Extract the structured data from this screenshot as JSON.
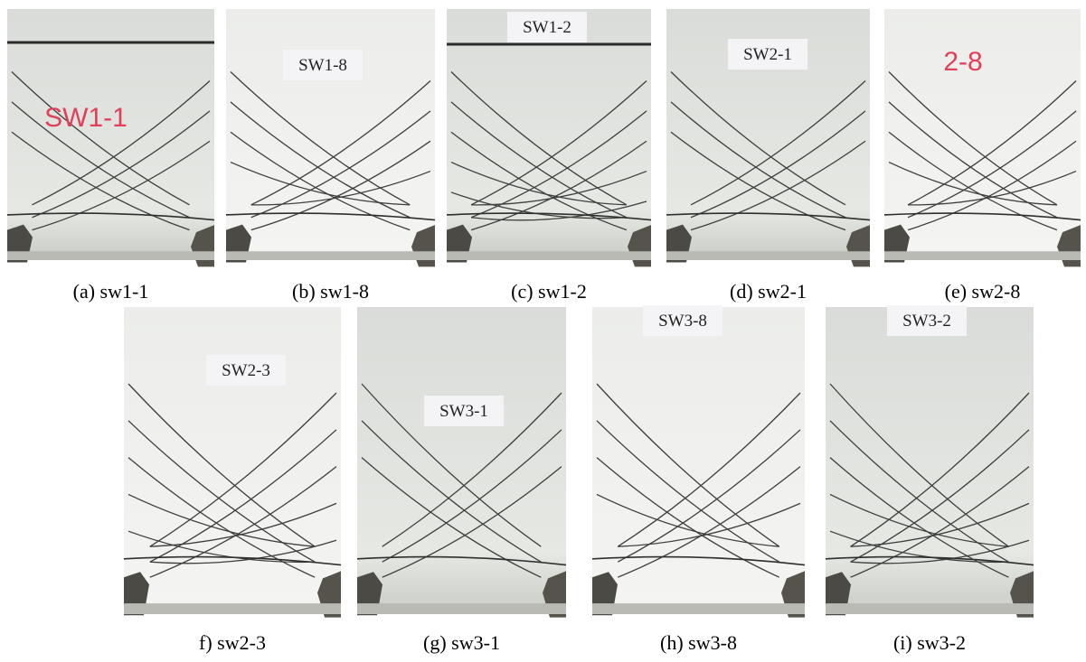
{
  "panels": [
    {
      "label": "SW1-1",
      "caption": "(a) sw1-1"
    },
    {
      "label": "SW1-8",
      "caption": "(b) sw1-8"
    },
    {
      "label": "SW1-2",
      "caption": "(c) sw1-2"
    },
    {
      "label": "SW2-1",
      "caption": "(d) sw2-1"
    },
    {
      "label": "2-8",
      "caption": "(e) sw2-8"
    },
    {
      "label": "SW2-3",
      "caption": "f) sw2-3"
    },
    {
      "label": "SW3-1",
      "caption": "(g) sw3-1"
    },
    {
      "label": "SW3-8",
      "caption": "(h) sw3-8"
    },
    {
      "label": "SW3-2",
      "caption": "(i) sw3-2"
    }
  ]
}
